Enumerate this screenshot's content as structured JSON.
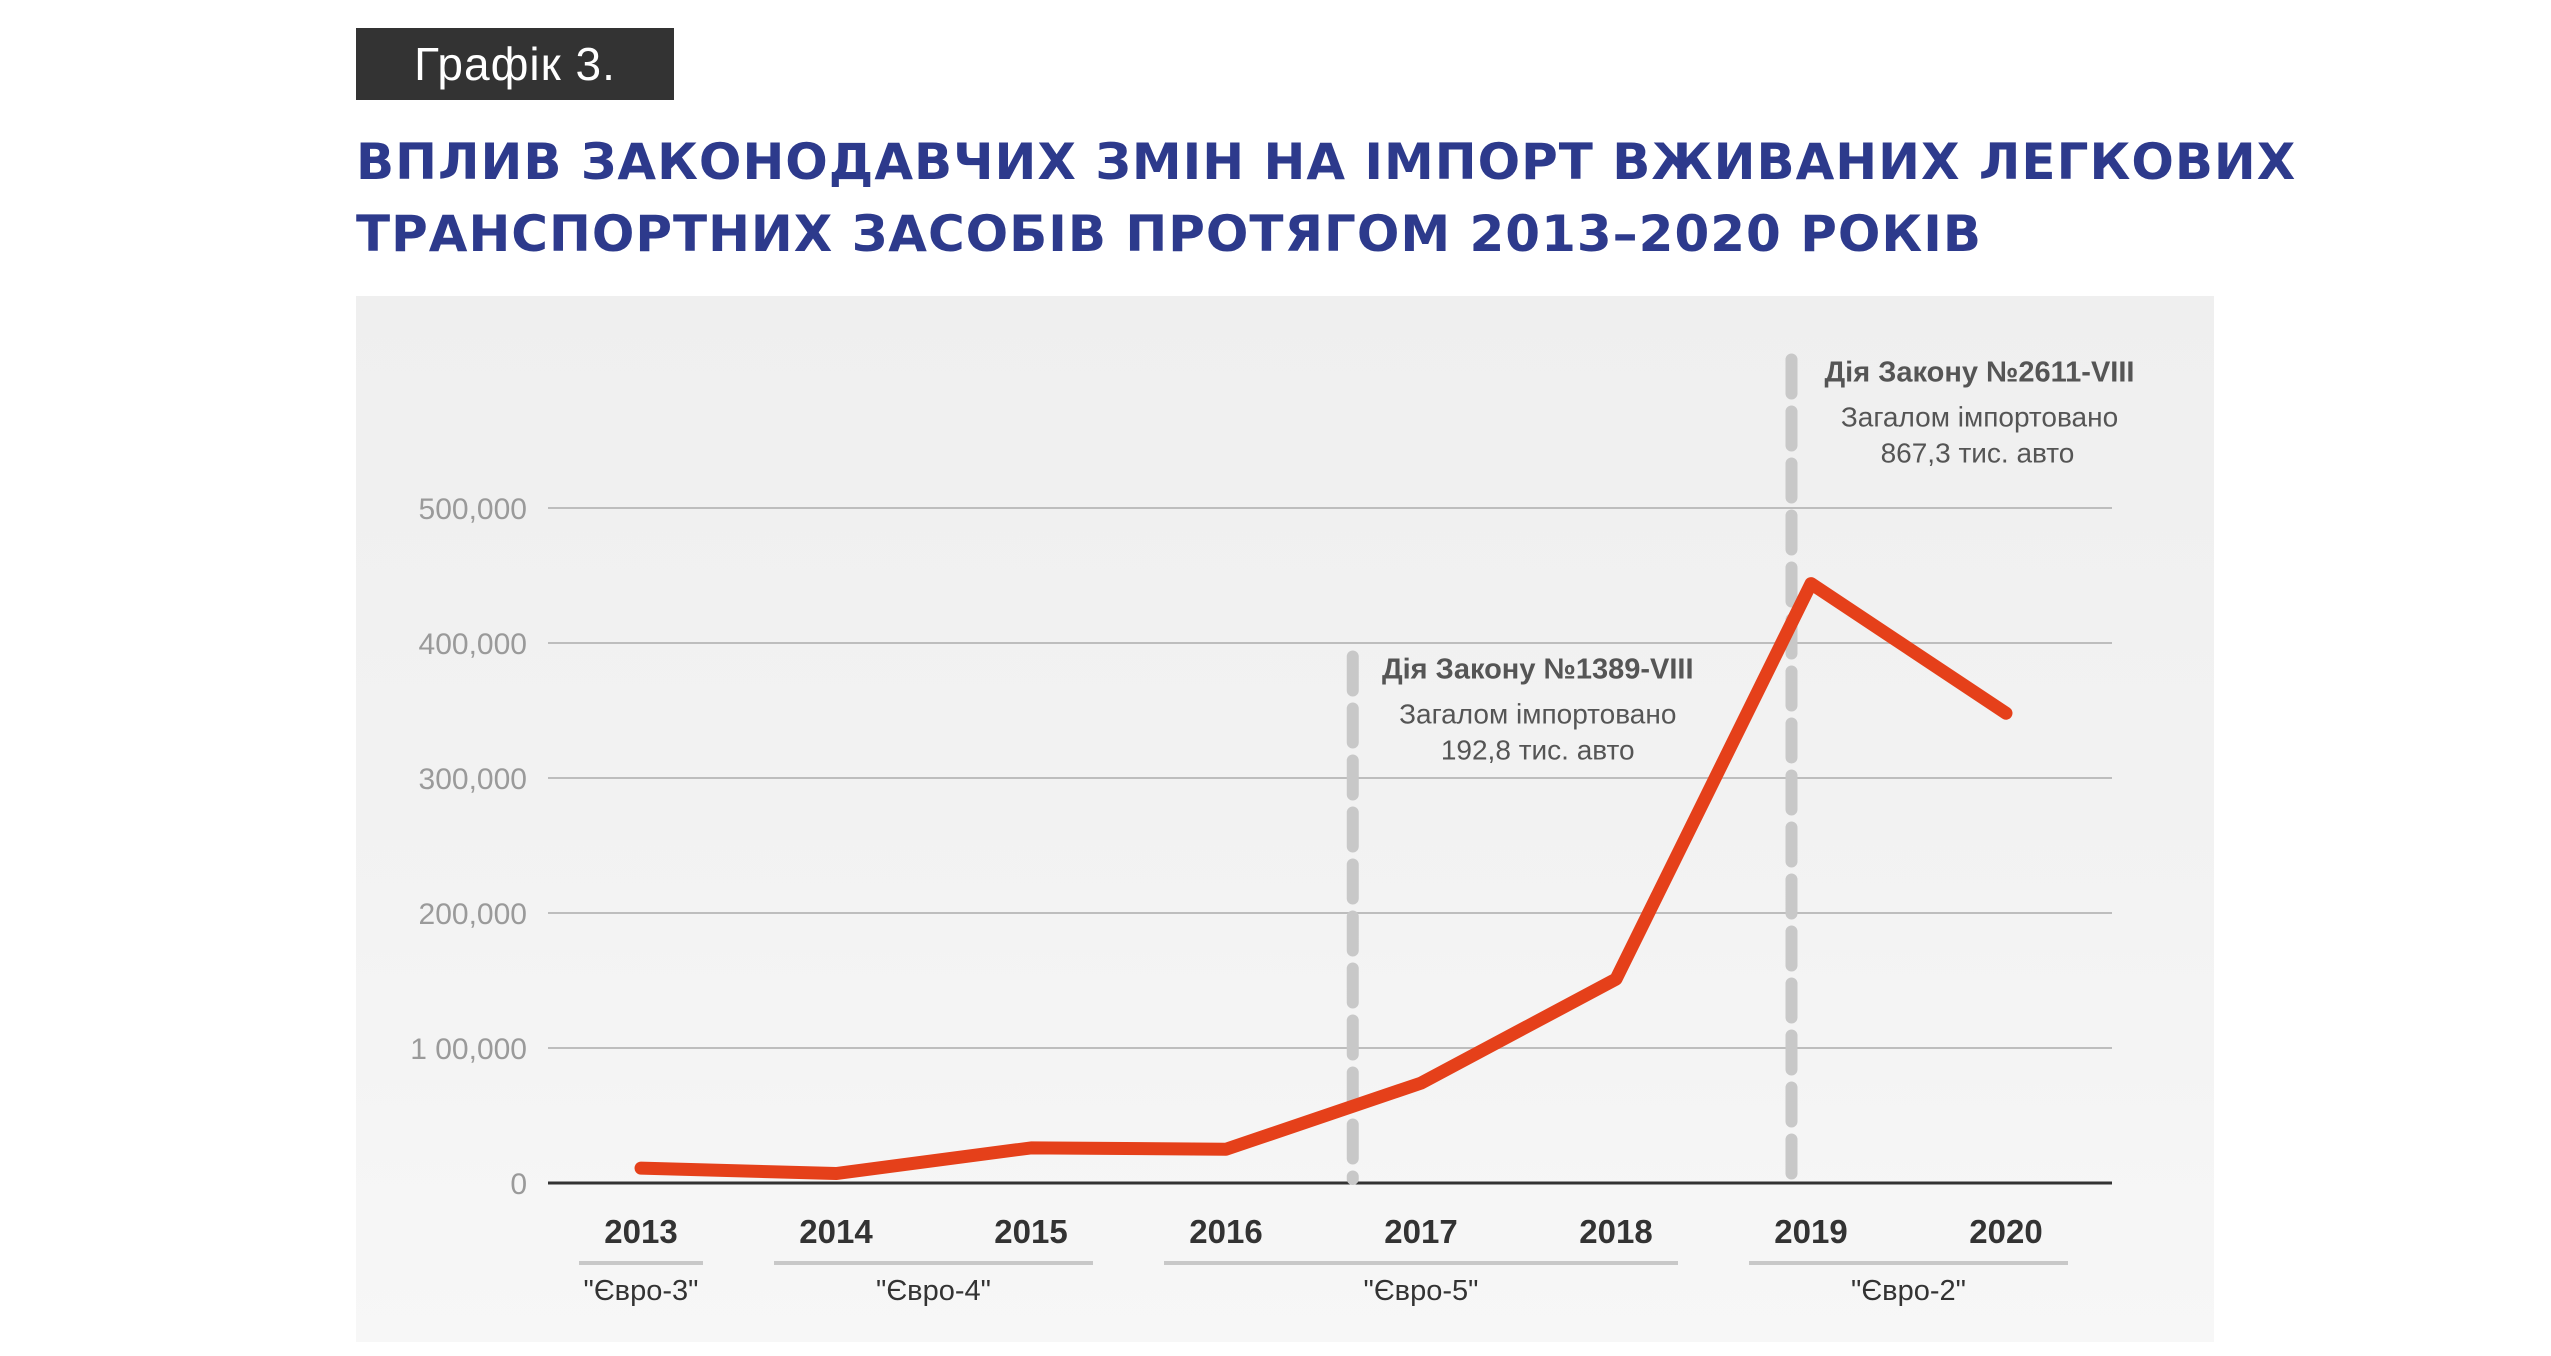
{
  "badge": "Графік 3.",
  "title_lines": [
    "ВПЛИВ ЗАКОНОДАВЧИХ ЗМІН НА ІМПОРТ ВЖИВАНИХ ЛЕГКОВИХ",
    "ТРАНСПОРТНИХ ЗАСОБІВ ПРОТЯГОМ 2013–2020 РОКІВ"
  ],
  "colors": {
    "line": "#e5401a",
    "title": "#2d3a8c",
    "badge_bg": "#333333",
    "grid": "#bdbdbd",
    "marker": "#c8c8c8",
    "axis_text": "#333333",
    "tick_text": "#9a9a9a",
    "annotation": "#555555"
  },
  "chart_data": {
    "type": "line",
    "title": "ВПЛИВ ЗАКОНОДАВЧИХ ЗМІН НА ІМПОРТ ВЖИВАНИХ ЛЕГКОВИХ ТРАНСПОРТНИХ ЗАСОБІВ ПРОТЯГОМ 2013–2020 РОКІВ",
    "categories": [
      "2013",
      "2014",
      "2015",
      "2016",
      "2017",
      "2018",
      "2019",
      "2020"
    ],
    "series": [
      {
        "values": [
          11000,
          7000,
          26000,
          25000,
          74000,
          151000,
          444000,
          348000
        ]
      }
    ],
    "ylim": [
      0,
      500000
    ],
    "yticks": [
      0,
      100000,
      200000,
      300000,
      400000,
      500000
    ],
    "ytick_labels": [
      "0",
      "1 00,000",
      "200,000",
      "300,000",
      "400,000",
      "500,000"
    ],
    "grid": true,
    "legend": "none",
    "euro_groups": [
      {
        "label": "\"Євро-3\"",
        "from": "2013",
        "to": "2013"
      },
      {
        "label": "\"Євро-4\"",
        "from": "2014",
        "to": "2015"
      },
      {
        "label": "\"Євро-5\"",
        "from": "2016",
        "to": "2018"
      },
      {
        "label": "\"Євро-2\"",
        "from": "2019",
        "to": "2020"
      }
    ],
    "annotations": [
      {
        "between": [
          "2016",
          "2017"
        ],
        "position_in_gap": 0.65,
        "top_value": 390000,
        "title": "Дія Закону №1389-VIII",
        "lines": [
          "Загалом імпортовано",
          "192,8 тис. авто"
        ]
      },
      {
        "between": [
          "2018",
          "2019"
        ],
        "position_in_gap": 0.9,
        "top_value": 610000,
        "title": "Дія Закону №2611-VIII",
        "lines": [
          "Загалом імпортовано",
          "867,3 тис. авто"
        ]
      }
    ]
  }
}
